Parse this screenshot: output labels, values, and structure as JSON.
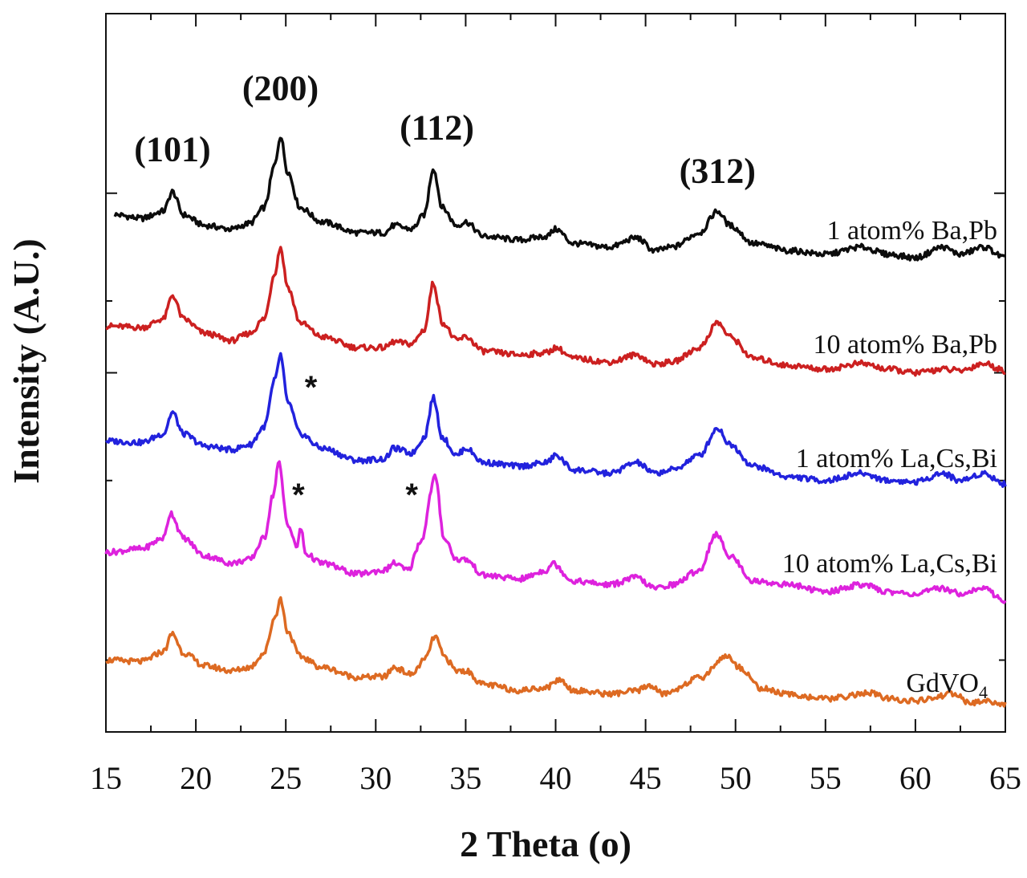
{
  "chart_data": {
    "type": "line",
    "title": "",
    "xlabel": "2 Theta (o)",
    "ylabel": "Intensity (A.U.)",
    "xlim": [
      15,
      65
    ],
    "ylim": [
      0,
      100
    ],
    "x_ticks": [
      15,
      20,
      25,
      30,
      35,
      40,
      45,
      50,
      55,
      60,
      65
    ],
    "x_tick_labels": [
      "15",
      "20",
      "25",
      "30",
      "35",
      "40",
      "45",
      "50",
      "55",
      "60",
      "65"
    ],
    "y_major_ticks": [
      50,
      75
    ],
    "y_minor_ticks": [
      10,
      35,
      60
    ],
    "series": [
      {
        "name": "1 atom% Ba,Pb",
        "color": "#0c0c0c",
        "points": [
          [
            15.5,
            72
          ],
          [
            17,
            71.5
          ],
          [
            18.2,
            72.5
          ],
          [
            18.7,
            75.2
          ],
          [
            19.3,
            72
          ],
          [
            20.5,
            70.5
          ],
          [
            22,
            70
          ],
          [
            23,
            70.8
          ],
          [
            23.8,
            73
          ],
          [
            24.4,
            79
          ],
          [
            24.7,
            83
          ],
          [
            25.1,
            78
          ],
          [
            25.8,
            73
          ],
          [
            27,
            71
          ],
          [
            29,
            69.5
          ],
          [
            30.5,
            69.5
          ],
          [
            31,
            70.5
          ],
          [
            32,
            70
          ],
          [
            32.7,
            72
          ],
          [
            33.2,
            78.5
          ],
          [
            33.7,
            73
          ],
          [
            34.5,
            70.5
          ],
          [
            35,
            71
          ],
          [
            36,
            69
          ],
          [
            38,
            68.5
          ],
          [
            39.5,
            69
          ],
          [
            40,
            70
          ],
          [
            41,
            68
          ],
          [
            43,
            67.5
          ],
          [
            44.5,
            68.8
          ],
          [
            45.5,
            67
          ],
          [
            46.5,
            67.5
          ],
          [
            48,
            69.5
          ],
          [
            49,
            72.5
          ],
          [
            49.7,
            70.5
          ],
          [
            51,
            68
          ],
          [
            53,
            67
          ],
          [
            55,
            66.5
          ],
          [
            57,
            67.5
          ],
          [
            58.5,
            66.5
          ],
          [
            60,
            66
          ],
          [
            61.5,
            67.5
          ],
          [
            62.5,
            66.5
          ],
          [
            63.8,
            67.5
          ],
          [
            65,
            66
          ]
        ]
      },
      {
        "name": "10 atom% Ba,Pb",
        "color": "#cc2020",
        "points": [
          [
            15,
            56.5
          ],
          [
            17,
            56.3
          ],
          [
            18.2,
            57.5
          ],
          [
            18.7,
            60.8
          ],
          [
            19.3,
            57.5
          ],
          [
            20.5,
            55.5
          ],
          [
            22,
            54.5
          ],
          [
            23,
            55.5
          ],
          [
            23.8,
            57.5
          ],
          [
            24.4,
            64
          ],
          [
            24.7,
            67.5
          ],
          [
            25.1,
            62
          ],
          [
            25.8,
            57
          ],
          [
            27,
            55
          ],
          [
            29,
            53.5
          ],
          [
            30.5,
            53.5
          ],
          [
            31,
            54.3
          ],
          [
            32,
            54
          ],
          [
            32.7,
            56
          ],
          [
            33.2,
            62.5
          ],
          [
            33.7,
            57
          ],
          [
            34.5,
            54.5
          ],
          [
            35,
            55
          ],
          [
            36,
            53
          ],
          [
            38,
            52.5
          ],
          [
            39.5,
            52.8
          ],
          [
            40,
            53.5
          ],
          [
            41,
            52
          ],
          [
            43,
            51.5
          ],
          [
            44.5,
            52.5
          ],
          [
            45.5,
            51.2
          ],
          [
            46.5,
            51.5
          ],
          [
            48,
            53.5
          ],
          [
            49,
            57
          ],
          [
            49.7,
            55
          ],
          [
            51,
            52
          ],
          [
            53,
            51
          ],
          [
            55,
            50.5
          ],
          [
            57,
            51.3
          ],
          [
            58.5,
            50.5
          ],
          [
            60,
            50
          ],
          [
            61.5,
            50.5
          ],
          [
            62.5,
            50.3
          ],
          [
            63.8,
            51.3
          ],
          [
            65,
            50.3
          ]
        ]
      },
      {
        "name": "1 atom% La,Cs,Bi",
        "color": "#2222dd",
        "points": [
          [
            15,
            40.5
          ],
          [
            17,
            40.3
          ],
          [
            18.2,
            41.5
          ],
          [
            18.7,
            44.5
          ],
          [
            19.3,
            41.5
          ],
          [
            20.5,
            39.8
          ],
          [
            22,
            39.3
          ],
          [
            23,
            40
          ],
          [
            23.8,
            42.5
          ],
          [
            24.4,
            49
          ],
          [
            24.7,
            52.5
          ],
          [
            25.1,
            46
          ],
          [
            25.8,
            41.5
          ],
          [
            27,
            39.5
          ],
          [
            29,
            37.8
          ],
          [
            30.5,
            38
          ],
          [
            31,
            39.5
          ],
          [
            32,
            38.8
          ],
          [
            32.7,
            41
          ],
          [
            33.2,
            46.5
          ],
          [
            33.7,
            41
          ],
          [
            34.5,
            38.5
          ],
          [
            35,
            39.5
          ],
          [
            36,
            37.5
          ],
          [
            38,
            37
          ],
          [
            39.5,
            37.5
          ],
          [
            40,
            38.5
          ],
          [
            41,
            36.5
          ],
          [
            43,
            36
          ],
          [
            44.5,
            37.5
          ],
          [
            45.5,
            36
          ],
          [
            46.5,
            36.5
          ],
          [
            48,
            38.5
          ],
          [
            49,
            42.3
          ],
          [
            49.7,
            40
          ],
          [
            51,
            37
          ],
          [
            53,
            35.5
          ],
          [
            55,
            35
          ],
          [
            57,
            36
          ],
          [
            58.5,
            35
          ],
          [
            60,
            34.8
          ],
          [
            61.5,
            36
          ],
          [
            62.5,
            35
          ],
          [
            63.8,
            36
          ],
          [
            65,
            34.5
          ]
        ]
      },
      {
        "name": "10 atom% La,Cs,Bi",
        "color": "#dd22dd",
        "points": [
          [
            15,
            25
          ],
          [
            17,
            25.5
          ],
          [
            18.2,
            27
          ],
          [
            18.6,
            30.5
          ],
          [
            19.3,
            27
          ],
          [
            20.5,
            24.5
          ],
          [
            22,
            23.5
          ],
          [
            23,
            24
          ],
          [
            23.8,
            27
          ],
          [
            24.3,
            33
          ],
          [
            24.6,
            37.5
          ],
          [
            25.1,
            29
          ],
          [
            25.6,
            25.8
          ],
          [
            25.85,
            28.3
          ],
          [
            26.1,
            24.8
          ],
          [
            27,
            23.5
          ],
          [
            29,
            22
          ],
          [
            30.5,
            22.5
          ],
          [
            31,
            23.5
          ],
          [
            31.8,
            22.5
          ],
          [
            32.5,
            26.5
          ],
          [
            33.3,
            35.5
          ],
          [
            33.8,
            27
          ],
          [
            34.5,
            24
          ],
          [
            35,
            24
          ],
          [
            36,
            21.8
          ],
          [
            38,
            21.3
          ],
          [
            39.5,
            22.5
          ],
          [
            39.8,
            23.5
          ],
          [
            41,
            21
          ],
          [
            43,
            20.5
          ],
          [
            44.5,
            21.5
          ],
          [
            45.5,
            20
          ],
          [
            46.5,
            20.5
          ],
          [
            48,
            22.5
          ],
          [
            48.9,
            27.5
          ],
          [
            49.7,
            24.5
          ],
          [
            51,
            21
          ],
          [
            53,
            20.5
          ],
          [
            55,
            19.5
          ],
          [
            57,
            20.5
          ],
          [
            58.5,
            19.5
          ],
          [
            60,
            19.2
          ],
          [
            61.5,
            20
          ],
          [
            62.5,
            19.3
          ],
          [
            63.8,
            20
          ],
          [
            65,
            18.2
          ]
        ]
      },
      {
        "name": "GdVO4",
        "color": "#dd6a22",
        "points": [
          [
            15,
            10
          ],
          [
            17,
            9.8
          ],
          [
            18.2,
            11.2
          ],
          [
            18.7,
            13.7
          ],
          [
            19.3,
            11
          ],
          [
            20.5,
            9.2
          ],
          [
            22,
            8.5
          ],
          [
            23,
            9
          ],
          [
            23.8,
            11
          ],
          [
            24.4,
            16
          ],
          [
            24.7,
            18.5
          ],
          [
            25.1,
            14
          ],
          [
            25.8,
            10.5
          ],
          [
            27,
            9
          ],
          [
            29,
            7.6
          ],
          [
            30.5,
            7.7
          ],
          [
            31,
            9
          ],
          [
            32,
            8
          ],
          [
            32.7,
            10
          ],
          [
            33.3,
            13.3
          ],
          [
            33.8,
            10.5
          ],
          [
            34.5,
            8.5
          ],
          [
            35,
            8.5
          ],
          [
            36,
            6.6
          ],
          [
            38,
            5.8
          ],
          [
            39.5,
            6.2
          ],
          [
            40.2,
            7.3
          ],
          [
            41,
            5.8
          ],
          [
            43,
            5.3
          ],
          [
            44.5,
            5.7
          ],
          [
            45.2,
            6.5
          ],
          [
            46,
            5.3
          ],
          [
            48,
            7.5
          ],
          [
            49.5,
            10.6
          ],
          [
            50.2,
            9
          ],
          [
            51.5,
            6
          ],
          [
            53,
            5.2
          ],
          [
            55,
            4.6
          ],
          [
            57.5,
            5.4
          ],
          [
            58.5,
            4.6
          ],
          [
            60,
            4.3
          ],
          [
            62.2,
            5.3
          ],
          [
            63,
            4
          ],
          [
            64,
            4.3
          ],
          [
            65,
            3.8
          ]
        ]
      }
    ],
    "series_labels": [
      "1 atom% Ba,Pb",
      "10 atom% Ba,Pb",
      "1 atom% La,Cs,Bi",
      "10 atom% La,Cs,Bi",
      "GdVO4"
    ],
    "peak_annotations": [
      {
        "label": "(101)",
        "x": 18.7,
        "y": 79.5
      },
      {
        "label": "(200)",
        "x": 24.7,
        "y": 88
      },
      {
        "label": "(112)",
        "x": 33.4,
        "y": 82.5
      },
      {
        "label": "(312)",
        "x": 49.0,
        "y": 76.5
      }
    ],
    "impurity_marks": [
      {
        "label": "*",
        "x": 26.4,
        "y": 46.5
      },
      {
        "label": "*",
        "x": 25.7,
        "y": 31.5
      },
      {
        "label": "*",
        "x": 32.0,
        "y": 31.5
      }
    ]
  }
}
